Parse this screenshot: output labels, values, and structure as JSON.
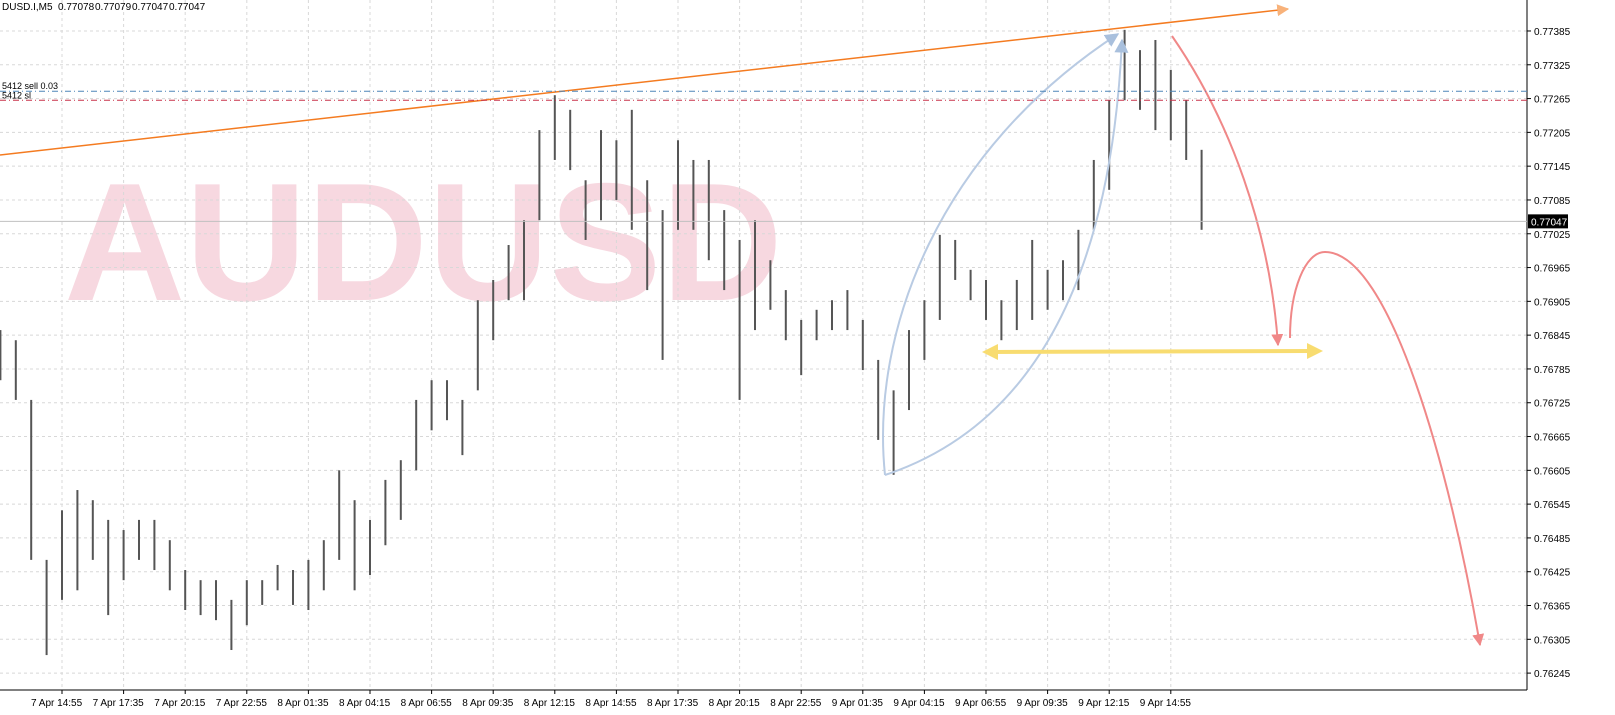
{
  "chart_data": {
    "type": "ohlc-range",
    "symbol": "DUSD.I,M5",
    "header_values": [
      0.77078,
      0.77079,
      0.77047,
      0.77047
    ],
    "watermark": "AUDUSD",
    "color": "#555555",
    "last_price": 0.77047,
    "orders": [
      {
        "label": "5412 sell 0.03",
        "price": 0.77278,
        "color": "#4f86b8"
      },
      {
        "label": "5412 sl",
        "price": 0.77262,
        "color": "#c8324a"
      }
    ],
    "ylim": [
      0.76215,
      0.7744
    ],
    "yticks": [
      0.76245,
      0.76305,
      0.76365,
      0.76425,
      0.76485,
      0.76545,
      0.76605,
      0.76665,
      0.76725,
      0.76785,
      0.76845,
      0.76905,
      0.76965,
      0.77025,
      0.77085,
      0.77145,
      0.77205,
      0.77265,
      0.77325,
      0.77385
    ],
    "grid": true,
    "categories": [
      null,
      null,
      null,
      null,
      "7 Apr 14:55",
      null,
      null,
      null,
      "7 Apr 17:35",
      null,
      null,
      null,
      "7 Apr 20:15",
      null,
      null,
      null,
      "7 Apr 22:55",
      null,
      null,
      null,
      "8 Apr 01:35",
      null,
      null,
      null,
      "8 Apr 04:15",
      null,
      null,
      null,
      "8 Apr 06:55",
      null,
      null,
      null,
      "8 Apr 09:35",
      null,
      null,
      null,
      "8 Apr 12:15",
      null,
      null,
      null,
      "8 Apr 14:55",
      null,
      null,
      null,
      "8 Apr 17:35",
      null,
      null,
      null,
      "8 Apr 20:15",
      null,
      null,
      null,
      "8 Apr 22:55",
      null,
      null,
      null,
      "9 Apr 01:35",
      null,
      null,
      null,
      "9 Apr 04:15",
      null,
      null,
      null,
      "9 Apr 06:55",
      null,
      null,
      null,
      "9 Apr 09:35",
      null,
      null,
      null,
      "9 Apr 12:15",
      null,
      null,
      null,
      "9 Apr 14:55",
      null,
      null
    ],
    "high": [
      0.76854,
      0.76836,
      0.7673,
      0.76446,
      0.76534,
      0.7657,
      0.76552,
      0.76517,
      0.76499,
      0.76517,
      0.76517,
      0.76481,
      0.76428,
      0.7641,
      0.7641,
      0.76375,
      0.7641,
      0.7641,
      0.76437,
      0.76428,
      0.76446,
      0.76481,
      0.76605,
      0.76552,
      0.76517,
      0.76588,
      0.76623,
      0.7673,
      0.76765,
      0.76765,
      0.7673,
      0.76907,
      0.76943,
      0.77005,
      0.77049,
      0.77209,
      0.77271,
      0.77245,
      0.7712,
      0.77209,
      0.77191,
      0.77245,
      0.7712,
      0.77067,
      0.77191,
      0.77156,
      0.77156,
      0.77067,
      0.77014,
      0.77049,
      0.76978,
      0.76925,
      0.76872,
      0.7689,
      0.76907,
      0.76925,
      0.76872,
      0.76801,
      0.76747,
      0.76854,
      0.76907,
      0.77023,
      0.77014,
      0.76961,
      0.76943,
      0.76907,
      0.76943,
      0.77014,
      0.76961,
      0.76978,
      0.77032,
      0.77156,
      0.77262,
      0.77387,
      0.77351,
      0.77369,
      0.77316,
      0.77262,
      0.77174
    ],
    "low": [
      0.76765,
      0.7673,
      0.76446,
      0.76277,
      0.76375,
      0.76392,
      0.76446,
      0.76348,
      0.7641,
      0.76446,
      0.76428,
      0.76392,
      0.76357,
      0.76348,
      0.76339,
      0.76286,
      0.7633,
      0.76366,
      0.76392,
      0.76366,
      0.76357,
      0.76392,
      0.76446,
      0.76392,
      0.76419,
      0.76472,
      0.76517,
      0.76605,
      0.76676,
      0.76694,
      0.76632,
      0.76747,
      0.76836,
      0.76907,
      0.76907,
      0.77049,
      0.77156,
      0.77138,
      0.77014,
      0.77049,
      0.77085,
      0.77032,
      0.76925,
      0.76801,
      0.77032,
      0.77032,
      0.76978,
      0.76925,
      0.7673,
      0.76854,
      0.7689,
      0.76836,
      0.76774,
      0.76836,
      0.76854,
      0.76854,
      0.76783,
      0.76659,
      0.76597,
      0.76712,
      0.76801,
      0.76872,
      0.76943,
      0.76907,
      0.76872,
      0.76836,
      0.76854,
      0.76872,
      0.7689,
      0.76907,
      0.76925,
      0.77032,
      0.77103,
      0.77262,
      0.77245,
      0.77209,
      0.77191,
      0.77156,
      0.77032
    ]
  }
}
